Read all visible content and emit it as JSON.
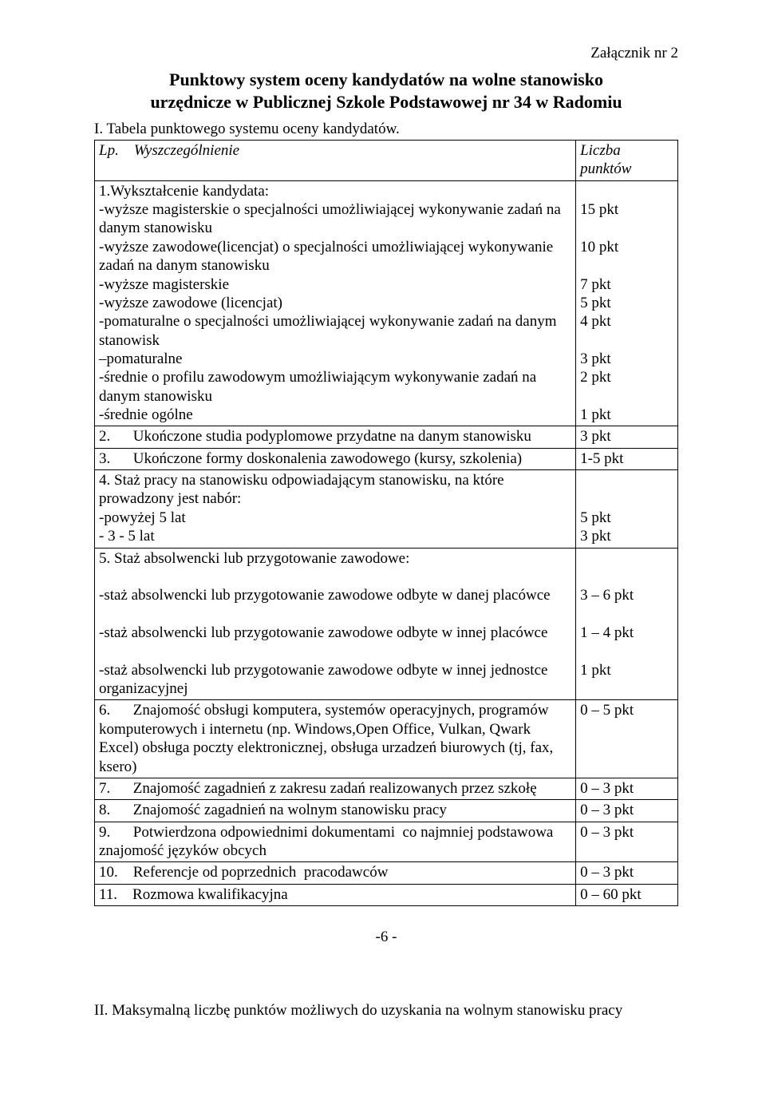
{
  "attachment_label": "Załącznik nr 2",
  "title_line1": "Punktowy system oceny kandydatów na wolne stanowisko",
  "title_line2": "urzędnicze w Publicznej Szkole Podstawowej nr 34 w Radomiu",
  "section_i": "I. Tabela punktowego systemu oceny kandydatów.",
  "header_lp_wy": "Lp.    Wyszczególnienie",
  "header_points_1": "Liczba",
  "header_points_2": "punktów",
  "r1_title": "1.Wykształcenie kandydata:",
  "r1_a": " -wyższe magisterskie o specjalności umożliwiającej wykonywanie zadań na danym stanowisku",
  "r1_a_pts": "15 pkt",
  "r1_b": " -wyższe zawodowe(licencjat) o specjalności umożliwiającej wykonywanie zadań na danym stanowisku",
  "r1_b_pts": "10 pkt",
  "r1_c": " -wyższe magisterskie",
  "r1_c_pts": "7 pkt",
  "r1_d": " -wyższe zawodowe (licencjat)",
  "r1_d_pts": "5 pkt",
  "r1_e": "-pomaturalne o specjalności umożliwiającej wykonywanie zadań na danym stanowisk",
  "r1_e_pts": "4 pkt",
  "r1_f": "–pomaturalne",
  "r1_f_pts": "3 pkt",
  "r1_g": " -średnie o profilu zawodowym umożliwiającym wykonywanie zadań na danym stanowisku",
  "r1_g_pts": "2 pkt",
  "r1_h": " -średnie ogólne",
  "r1_h_pts": "1 pkt",
  "r2_label": "2.      Ukończone studia podyplomowe przydatne na danym stanowisku",
  "r2_pts": "3 pkt",
  "r3_label": "3.      Ukończone formy doskonalenia zawodowego (kursy, szkolenia)",
  "r3_pts": "1-5 pkt",
  "r4_title": "4.    Staż pracy na stanowisku odpowiadającym stanowisku, na które prowadzony jest nabór:",
  "r4_a": "-powyżej 5 lat",
  "r4_a_pts": "5 pkt",
  "r4_b": " - 3 - 5 lat",
  "r4_b_pts": "3 pkt",
  "r5_title": "5. Staż absolwencki lub przygotowanie zawodowe:",
  "r5_a": "-staż absolwencki lub przygotowanie zawodowe odbyte w danej placówce",
  "r5_a_pts": "3 – 6 pkt",
  "r5_b": "-staż absolwencki lub przygotowanie zawodowe odbyte w innej placówce",
  "r5_b_pts": "1 – 4 pkt",
  "r5_c": "-staż absolwencki lub przygotowanie zawodowe odbyte w innej jednostce organizacyjnej",
  "r5_c_pts": "1 pkt",
  "r6_label": "6.      Znajomość obsługi komputera, systemów operacyjnych, programów komputerowych i internetu (np. Windows,Open Office, Vulkan, Qwark Excel) obsługa poczty elektronicznej, obsługa urzadzeń biurowych (tj, fax, ksero)",
  "r6_pts_blank": " ",
  "r6_pts": "0 – 5 pkt",
  "r7_label": "7.      Znajomość zagadnień z zakresu zadań realizowanych przez szkołę",
  "r7_pts": "0 – 3 pkt",
  "r8_label": "8.      Znajomość zagadnień na wolnym stanowisku pracy",
  "r8_pts": "0 – 3 pkt",
  "r9_label": "9.      Potwierdzona odpowiednimi dokumentami  co najmniej podstawowa znajomość języków obcych",
  "r9_pts": "0 – 3 pkt",
  "r10_label": "10.    Referencje od poprzednich  pracodawców",
  "r10_pts": "0 – 3 pkt",
  "r11_label": "11.    Rozmowa kwalifikacyjna",
  "r11_pts": "0 – 60 pkt",
  "page_number": "-6 -",
  "section_ii": "II. Maksymalną liczbę punktów możliwych do uzyskania na wolnym stanowisku pracy"
}
